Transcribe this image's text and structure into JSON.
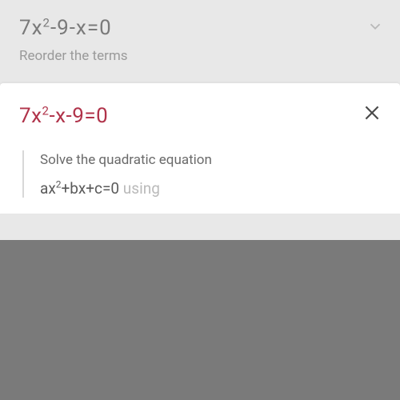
{
  "top": {
    "equation_html": "7x<sup>2</sup>-9-x=0",
    "instruction": "Reorder the terms"
  },
  "card": {
    "reordered_html": "7x<sup>2</sup>-x-9=0",
    "explanation": "Solve the quadratic equation",
    "formula_visible_html": "ax<sup>2</sup>+bx+c=0",
    "formula_faded": " using"
  },
  "colors": {
    "background": "#e8e8e8",
    "card_bg": "#ffffff",
    "muted_text": "#7a7a7a",
    "instruction_text": "#9a9a9a",
    "accent": "#b0334a",
    "overlay": "#7a7a7a"
  }
}
